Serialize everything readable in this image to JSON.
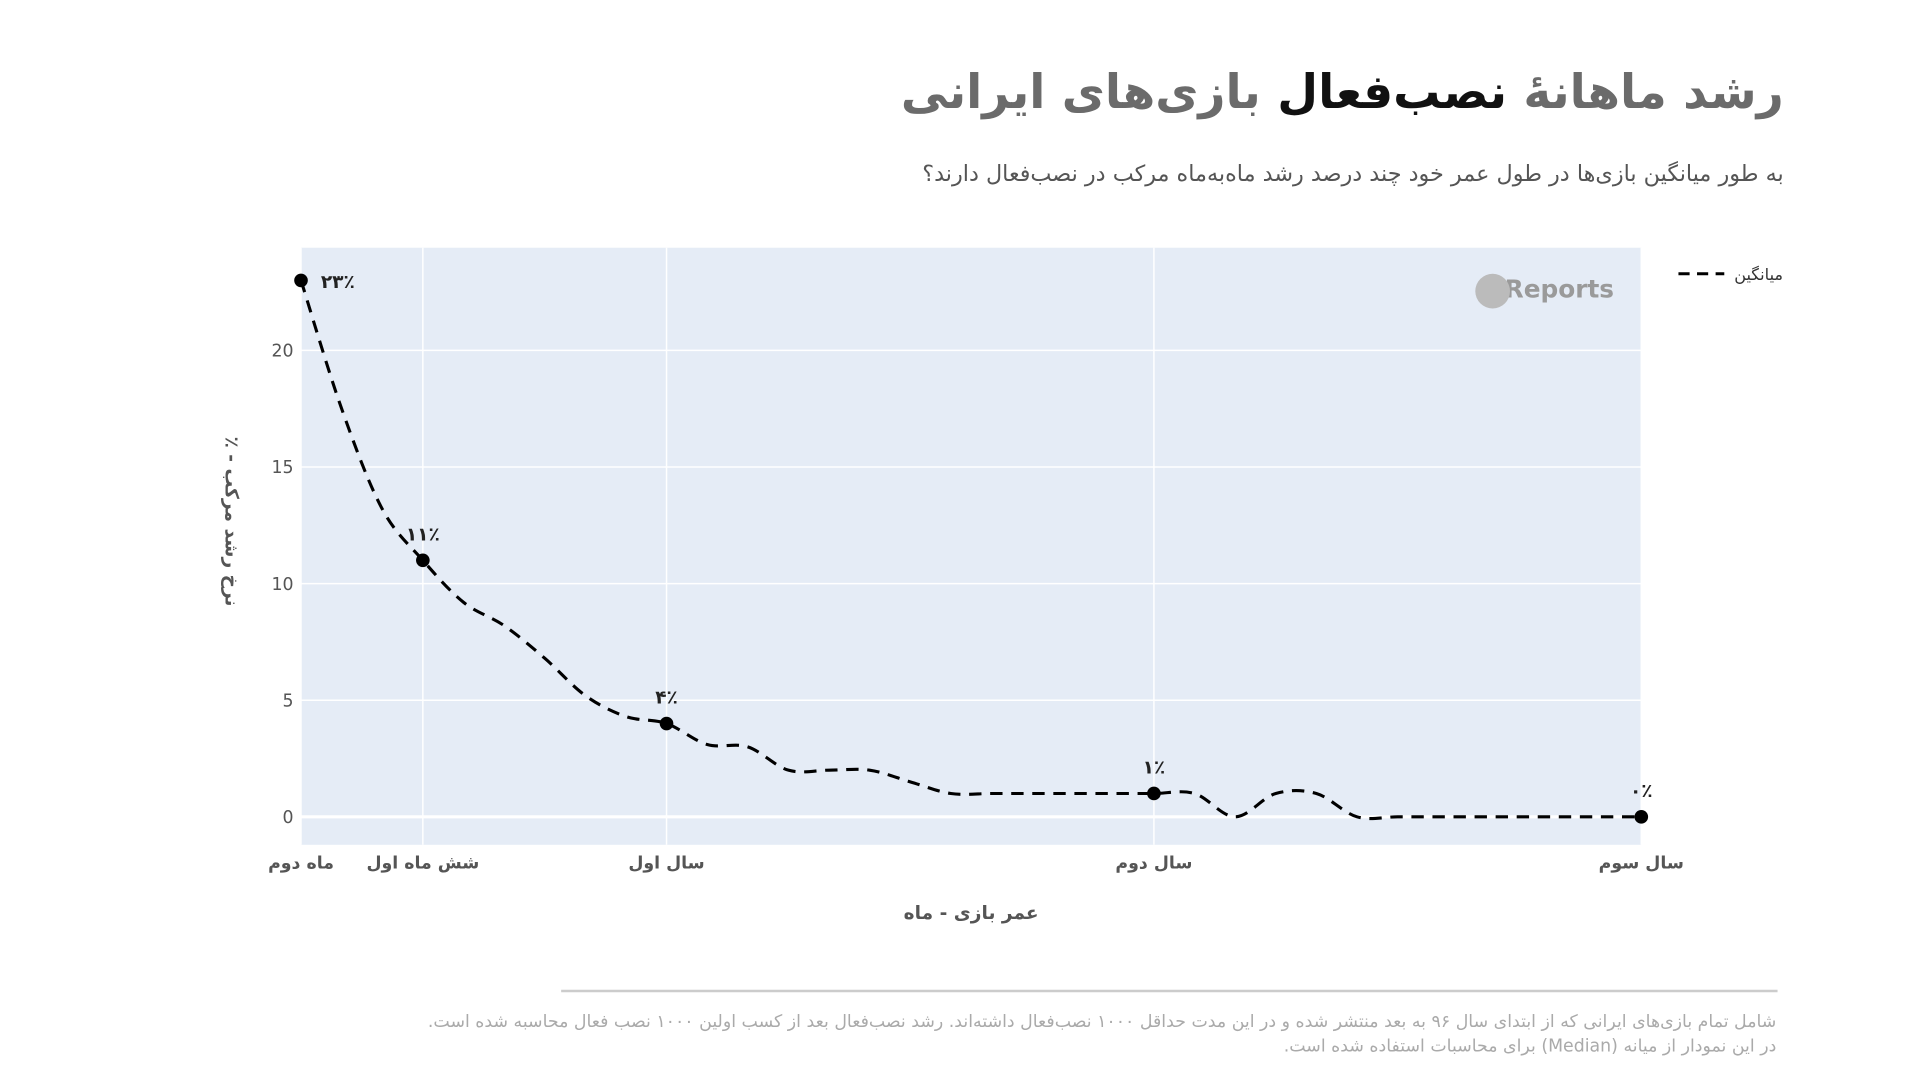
{
  "chart_data": {
    "type": "line",
    "title": [
      "رشد ماهانهٔ",
      "نصب‌فعال",
      "بازی‌های ایرانی"
    ],
    "subtitle": "به طور میانگین بازی‌ها در طول عمر خود چند درصد رشد ماه‌به‌ماه مرکب در نصب‌فعال دارند؟",
    "x_label": "عمر بازی - ماه",
    "y_label": "٪ - نرخ رشد مرکب",
    "watermark": "Reports",
    "legend": "top-right-outside",
    "grid": true,
    "x": [
      3,
      4,
      5,
      6,
      7,
      8,
      9,
      10,
      11,
      12,
      13,
      14,
      15,
      16,
      17,
      18,
      19,
      20,
      21,
      22,
      23,
      24,
      25,
      26,
      27,
      28,
      29,
      30,
      31,
      32,
      33,
      34,
      35,
      36
    ],
    "xlim": [
      3,
      36
    ],
    "xticks": [
      {
        "value": 3,
        "label": "ماه دوم"
      },
      {
        "value": 6,
        "label": "شش ماه اول"
      },
      {
        "value": 12,
        "label": "سال اول"
      },
      {
        "value": 24,
        "label": "سال دوم"
      },
      {
        "value": 36,
        "label": "سال سوم"
      }
    ],
    "ylim": [
      -1.2,
      24.4
    ],
    "yticks": [
      0,
      5,
      10,
      15,
      20
    ],
    "series": [
      {
        "name": "میانگین",
        "color": "#000000",
        "values": [
          23,
          17.5,
          13.2,
          11,
          9.2,
          8.2,
          6.8,
          5.2,
          4.3,
          4,
          3.1,
          3,
          2,
          2,
          2,
          1.5,
          1,
          1,
          1,
          1,
          1,
          1,
          1,
          0,
          1,
          1,
          0,
          0,
          0,
          0,
          0,
          0,
          0,
          0
        ],
        "value_labels": [
          "۲۳٪",
          null,
          null,
          "۱۱٪",
          null,
          null,
          null,
          null,
          null,
          "۴٪",
          null,
          null,
          null,
          null,
          null,
          null,
          null,
          null,
          null,
          null,
          null,
          "۱٪",
          null,
          null,
          null,
          null,
          null,
          null,
          null,
          null,
          null,
          null,
          null,
          "۰٪"
        ]
      }
    ],
    "footnote": [
      "شامل تمام بازی‌های ایرانی که از ابتدای سال ۹۶ به بعد منتشر شده و در این مدت حداقل ۱۰۰۰ نصب‌فعال داشته‌اند. رشد نصب‌فعال بعد از کسب اولین ۱۰۰۰ نصب فعال محاسبه شده است.",
      "در این نمودار از میانه (Median) برای محاسبات استفاده شده است."
    ]
  }
}
